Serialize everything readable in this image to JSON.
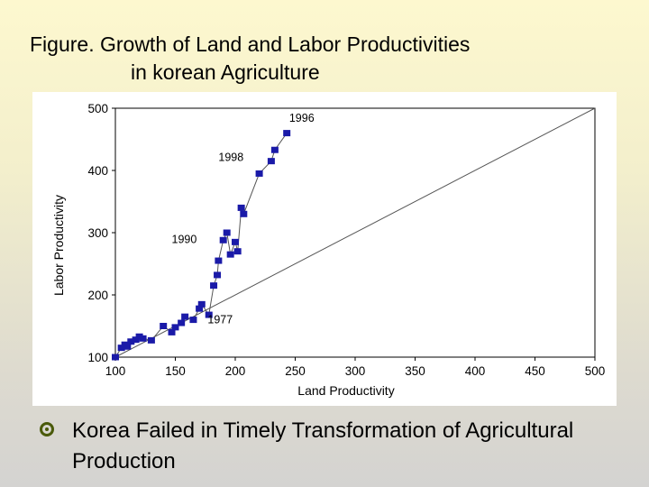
{
  "title": {
    "line1": "Figure. Growth of Land and Labor Productivities",
    "line2": "in korean Agriculture"
  },
  "bullet": {
    "text": "Korea Failed in Timely Transformation of Agricultural Production",
    "icon": "circle-bullet-icon"
  },
  "colors": {
    "marker": "#1a1aa8",
    "line": "#555555",
    "bullet": "#4a5a0a"
  },
  "chart_data": {
    "type": "scatter",
    "xlabel": "Land Productivity",
    "ylabel": "Labor Productivity",
    "xlim": [
      100,
      500
    ],
    "ylim": [
      100,
      500
    ],
    "x_ticks": [
      100,
      150,
      200,
      250,
      300,
      350,
      400,
      450,
      500
    ],
    "y_ticks": [
      100,
      200,
      300,
      400,
      500
    ],
    "grid": false,
    "series": [
      {
        "marker": "square",
        "connected": true,
        "x": [
          100,
          105,
          108,
          110,
          113,
          117,
          120,
          123,
          130,
          140,
          147,
          150,
          155,
          158,
          165,
          170,
          172,
          178,
          182,
          185,
          186,
          190,
          193,
          196,
          200,
          202,
          205,
          207,
          220,
          230,
          233,
          243
        ],
        "y": [
          100,
          115,
          120,
          117,
          125,
          128,
          133,
          130,
          127,
          150,
          140,
          148,
          155,
          165,
          160,
          178,
          185,
          168,
          215,
          232,
          255,
          288,
          300,
          265,
          285,
          270,
          340,
          330,
          395,
          415,
          433,
          460
        ]
      }
    ],
    "reference_line": {
      "x": [
        100,
        500
      ],
      "y": [
        100,
        500
      ]
    },
    "annotations": [
      {
        "text": "1977",
        "x": 177,
        "y": 154
      },
      {
        "text": "1990",
        "x": 147,
        "y": 283
      },
      {
        "text": "1998",
        "x": 186,
        "y": 415
      },
      {
        "text": "1996",
        "x": 245,
        "y": 478
      }
    ]
  }
}
